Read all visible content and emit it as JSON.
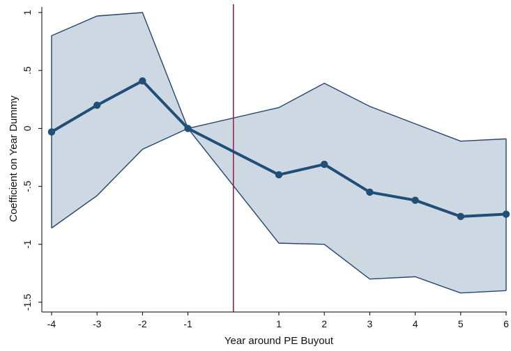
{
  "chart_data": {
    "type": "line",
    "xlabel": "Year around PE Buyout",
    "ylabel": "Coefficient on Year Dummy",
    "x": [
      -4,
      -3,
      -2,
      -1,
      1,
      2,
      3,
      4,
      5,
      6
    ],
    "x_tick_labels": [
      "-4",
      "-3",
      "-2",
      "-1",
      "1",
      "2",
      "3",
      "4",
      "5",
      "6"
    ],
    "y_ticks": [
      1,
      0.5,
      0,
      -0.5,
      -1,
      -1.5
    ],
    "y_tick_labels": [
      "1",
      ".5",
      "0",
      "-.5",
      "-1",
      "-1.5"
    ],
    "xlim": [
      -4,
      6
    ],
    "ylim": [
      -1.5,
      1
    ],
    "grid": false,
    "legend": "none",
    "reference_line_x": 0,
    "series": [
      {
        "values": [
          -0.03,
          0.2,
          0.41,
          0.0,
          -0.4,
          -0.31,
          -0.55,
          -0.62,
          -0.76,
          -0.74
        ],
        "lower": [
          -0.86,
          -0.58,
          -0.18,
          0.0,
          -0.99,
          -1.0,
          -1.3,
          -1.28,
          -1.42,
          -1.4
        ],
        "upper": [
          0.8,
          0.97,
          1.0,
          0.0,
          0.18,
          0.39,
          0.19,
          0.04,
          -0.11,
          -0.09
        ]
      }
    ],
    "colors": {
      "line": "#1f4e79",
      "band_fill": "#ced8e2",
      "band_edge": "#24456e",
      "reference_line": "#a0204f",
      "axis": "#000000"
    }
  }
}
